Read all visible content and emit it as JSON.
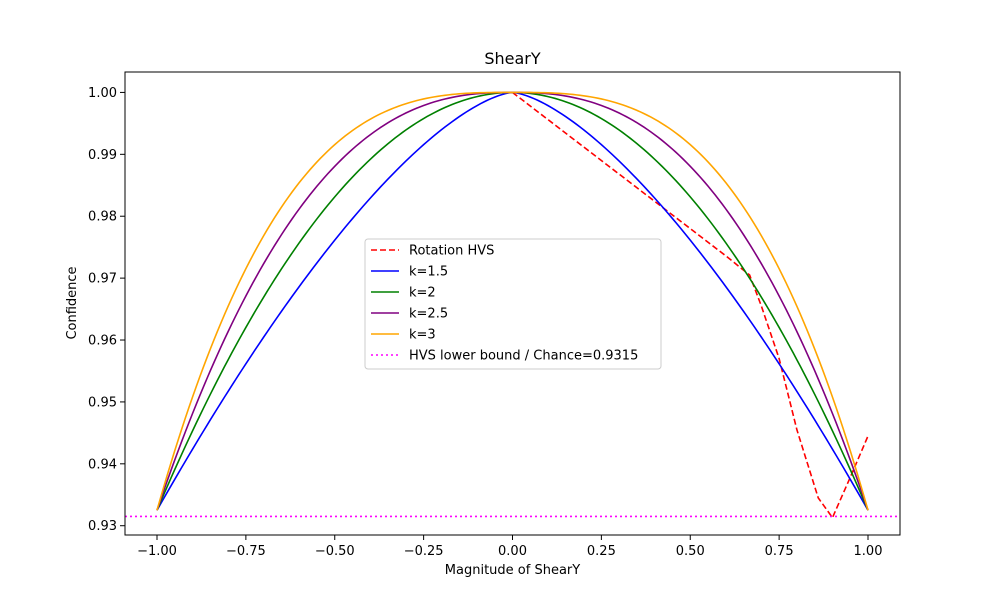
{
  "chart_data": {
    "type": "line",
    "title": "ShearY",
    "xlabel": "Magnitude of ShearY",
    "ylabel": "Confidence",
    "xlim": [
      -1.09,
      1.09
    ],
    "ylim": [
      0.9285,
      1.0033
    ],
    "x_ticks": [
      -1.0,
      -0.75,
      -0.5,
      -0.25,
      0.0,
      0.25,
      0.5,
      0.75,
      1.0
    ],
    "x_tick_labels": [
      "−1.00",
      "−0.75",
      "−0.50",
      "−0.25",
      "0.00",
      "0.25",
      "0.50",
      "0.75",
      "1.00"
    ],
    "y_ticks": [
      0.93,
      0.94,
      0.95,
      0.96,
      0.97,
      0.98,
      0.99,
      1.0
    ],
    "y_tick_labels": [
      "0.93",
      "0.94",
      "0.95",
      "0.96",
      "0.97",
      "0.98",
      "0.99",
      "1.00"
    ],
    "grid": false,
    "legend_position": "center",
    "curve_min": 0.9325,
    "series": [
      {
        "name": "Rotation HVS",
        "color": "#ff0000",
        "style": "dashed",
        "x": [
          0.0,
          0.1,
          0.2,
          0.3,
          0.4,
          0.5,
          0.6,
          0.667,
          0.7,
          0.75,
          0.8,
          0.86,
          0.9,
          0.95,
          1.0
        ],
        "y": [
          1.0,
          0.9956,
          0.9912,
          0.9868,
          0.9824,
          0.978,
          0.9736,
          0.9705,
          0.9655,
          0.957,
          0.9455,
          0.9345,
          0.9313,
          0.9378,
          0.9445
        ]
      },
      {
        "name": "k=1.5",
        "color": "#0000ff",
        "style": "solid",
        "k": 1.5
      },
      {
        "name": "k=2",
        "color": "#008000",
        "style": "solid",
        "k": 2
      },
      {
        "name": "k=2.5",
        "color": "#800080",
        "style": "solid",
        "k": 2.5
      },
      {
        "name": "k=3",
        "color": "#ffa500",
        "style": "solid",
        "k": 3
      },
      {
        "name": "HVS lower bound / Chance=0.9315",
        "color": "#ff00ff",
        "style": "dotted",
        "y_const": 0.9315
      }
    ]
  }
}
